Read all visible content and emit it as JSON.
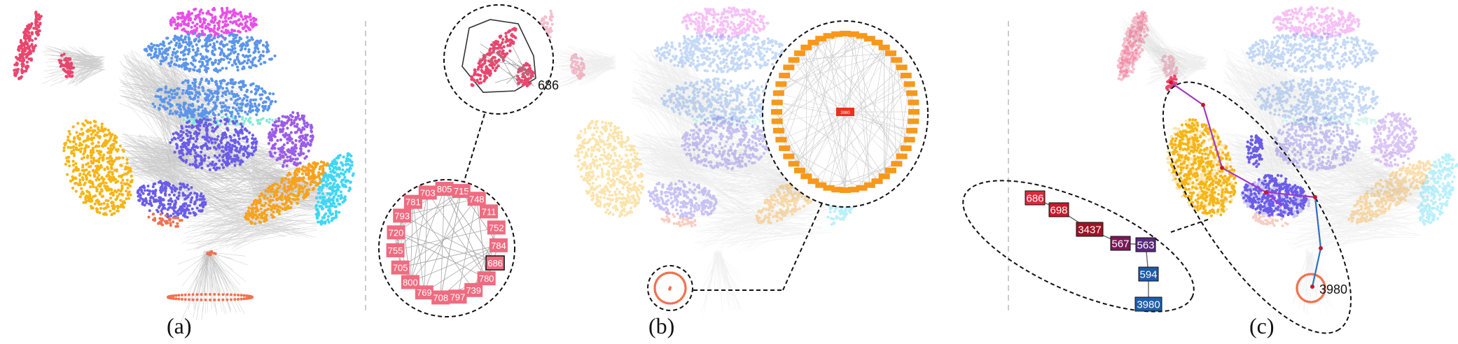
{
  "panels": [
    {
      "label": "(a)"
    },
    {
      "label": "(b)"
    },
    {
      "label": "(c)"
    }
  ],
  "panel_b": {
    "hull_node_label": "686",
    "ring_nodes": [
      "703",
      "805",
      "715",
      "748",
      "711",
      "752",
      "784",
      "686",
      "780",
      "739",
      "797",
      "708",
      "769",
      "800",
      "705",
      "755",
      "720",
      "793",
      "781"
    ],
    "orange_ring_label_count": 52,
    "orange_center_label": "3980"
  },
  "panel_c": {
    "path_nodes": [
      {
        "label": "686",
        "color": "#e0263a"
      },
      {
        "label": "698",
        "color": "#c8182b"
      },
      {
        "label": "3437",
        "color": "#9c1426"
      },
      {
        "label": "567",
        "color": "#7a1a55"
      },
      {
        "label": "563",
        "color": "#5a2a7e"
      },
      {
        "label": "594",
        "color": "#1f5aa6"
      },
      {
        "label": "3980",
        "color": "#1c5fa8"
      }
    ],
    "endpoint_label": "3980"
  },
  "colors": {
    "pink": "#e8466e",
    "magenta": "#e74fe8",
    "blue": "#5c95ea",
    "indigo": "#6a5ce8",
    "purple": "#9b5ce8",
    "yellow": "#f6b514",
    "orange": "#f7a21c",
    "cyan": "#3ed7f5",
    "coral": "#f0714f",
    "teal": "#83e8d6",
    "ring_fill": "#ee6c80",
    "orange_label": "#f7981b",
    "path_purple": "#a23bc4",
    "path_blue": "#2a6fc4"
  }
}
